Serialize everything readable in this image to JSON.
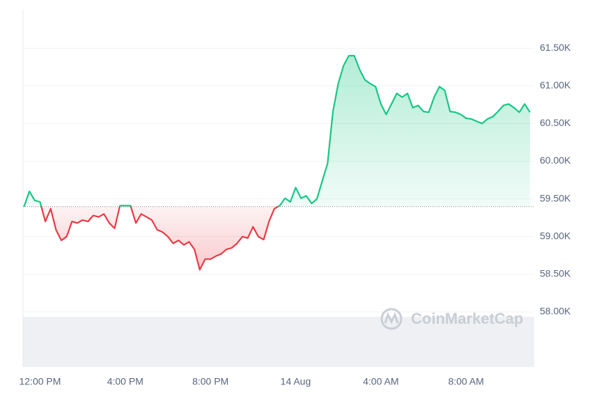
{
  "chart_data": {
    "type": "line",
    "watermark": "CoinMarketCap",
    "x": [
      11.25,
      11.5,
      11.75,
      12,
      12.25,
      12.5,
      12.75,
      13,
      13.25,
      13.5,
      13.75,
      14,
      14.25,
      14.5,
      14.75,
      15,
      15.25,
      15.5,
      15.75,
      16,
      16.25,
      16.5,
      16.75,
      17,
      17.25,
      17.5,
      17.75,
      18,
      18.25,
      18.5,
      18.75,
      19,
      19.25,
      19.5,
      19.75,
      20,
      20.25,
      20.5,
      20.75,
      21,
      21.25,
      21.5,
      21.75,
      22,
      22.25,
      22.5,
      22.75,
      23,
      23.25,
      23.5,
      23.75,
      24,
      24.25,
      24.5,
      24.75,
      25,
      25.25,
      25.5,
      25.75,
      26,
      26.25,
      26.5,
      26.75,
      27,
      27.25,
      27.5,
      27.75,
      28,
      28.25,
      28.5,
      28.75,
      29,
      29.25,
      29.5,
      29.75,
      30,
      30.25,
      30.5,
      30.75,
      31,
      31.25,
      31.5,
      31.75,
      32,
      32.25,
      32.5,
      32.75,
      33,
      33.25,
      33.5,
      33.75,
      34,
      34.25,
      34.5,
      34.75,
      35
    ],
    "series": [
      {
        "color_up": "#16c784",
        "color_down": "#ea3943",
        "values": [
          59398,
          59600,
          59480,
          59460,
          59200,
          59370,
          59090,
          58950,
          59000,
          59200,
          59180,
          59220,
          59200,
          59280,
          59260,
          59300,
          59180,
          59110,
          59410,
          59410,
          59410,
          59180,
          59300,
          59260,
          59220,
          59090,
          59060,
          59000,
          58910,
          58950,
          58890,
          58930,
          58830,
          58560,
          58700,
          58700,
          58740,
          58770,
          58830,
          58850,
          58910,
          59000,
          58980,
          59130,
          59000,
          58960,
          59200,
          59370,
          59410,
          59510,
          59460,
          59650,
          59510,
          59540,
          59440,
          59500,
          59740,
          59970,
          60660,
          61030,
          61270,
          61400,
          61400,
          61220,
          61080,
          61030,
          60990,
          60760,
          60620,
          60760,
          60900,
          60850,
          60900,
          60710,
          60740,
          60660,
          60650,
          60850,
          60990,
          60940,
          60660,
          60650,
          60620,
          60570,
          60560,
          60530,
          60500,
          60560,
          60590,
          60660,
          60740,
          60760,
          60710,
          60650,
          60760,
          60650
        ]
      }
    ],
    "xlim": [
      11.2,
      35.2
    ],
    "xticks": [
      {
        "value": 12,
        "label": "12:00 PM"
      },
      {
        "value": 16,
        "label": "4:00 PM"
      },
      {
        "value": 20,
        "label": "8:00 PM"
      },
      {
        "value": 24,
        "label": "14 Aug"
      },
      {
        "value": 28,
        "label": "4:00 AM"
      },
      {
        "value": 32,
        "label": "8:00 AM"
      }
    ],
    "ylim": [
      57270,
      62010
    ],
    "yticks": [
      {
        "value": 58000,
        "label": "58.00K"
      },
      {
        "value": 58500,
        "label": "58.50K"
      },
      {
        "value": 59000,
        "label": "59.00K"
      },
      {
        "value": 59500,
        "label": "59.50K"
      },
      {
        "value": 60000,
        "label": "60.00K"
      },
      {
        "value": 60500,
        "label": "60.50K"
      },
      {
        "value": 61000,
        "label": "61.00K"
      },
      {
        "value": 61500,
        "label": "61.50K"
      }
    ],
    "grid": true
  }
}
